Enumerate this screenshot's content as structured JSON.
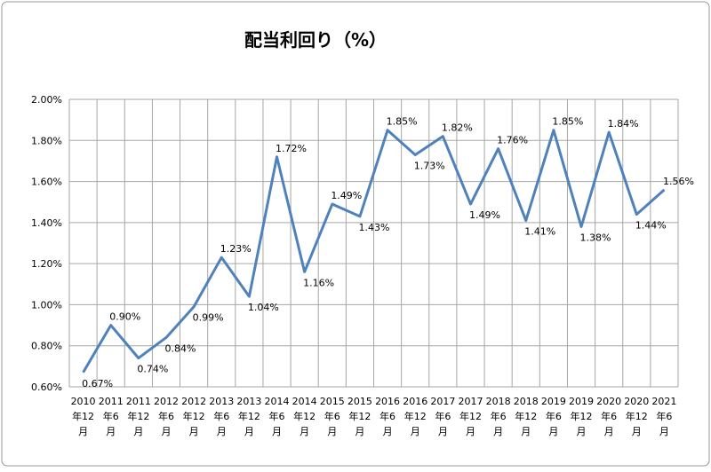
{
  "chart_data": {
    "type": "line",
    "title": "配当利回り（%）",
    "categories": [
      "2010年12月",
      "2011年6月",
      "2011年12月",
      "2012年6月",
      "2012年12月",
      "2013年6月",
      "2013年12月",
      "2014年6月",
      "2014年12月",
      "2015年6月",
      "2015年12月",
      "2016年6月",
      "2016年12月",
      "2017年6月",
      "2017年12月",
      "2018年6月",
      "2018年12月",
      "2019年6月",
      "2019年12月",
      "2020年6月",
      "2020年12月",
      "2021年6月"
    ],
    "series": [
      {
        "color": "#4f81bd",
        "values": [
          0.67,
          0.9,
          0.74,
          0.84,
          0.99,
          1.23,
          1.04,
          1.72,
          1.16,
          1.49,
          1.43,
          1.85,
          1.73,
          1.82,
          1.49,
          1.76,
          1.41,
          1.85,
          1.38,
          1.84,
          1.44,
          1.56
        ],
        "value_labels": [
          "0.67%",
          "0.90%",
          "0.74%",
          "0.84%",
          "0.99%",
          "1.23%",
          "1.04%",
          "1.72%",
          "1.16%",
          "1.49%",
          "1.43%",
          "1.85%",
          "1.73%",
          "1.82%",
          "1.49%",
          "1.76%",
          "1.41%",
          "1.85%",
          "1.38%",
          "1.84%",
          "1.44%",
          "1.56%"
        ]
      }
    ],
    "ylim": [
      0.6,
      2.0
    ],
    "yticks": [
      {
        "value": 0.6,
        "label": "0.60%"
      },
      {
        "value": 0.8,
        "label": "0.80%"
      },
      {
        "value": 1.0,
        "label": "1.00%"
      },
      {
        "value": 1.2,
        "label": "1.20%"
      },
      {
        "value": 1.4,
        "label": "1.40%"
      },
      {
        "value": 1.6,
        "label": "1.60%"
      },
      {
        "value": 1.8,
        "label": "1.80%"
      },
      {
        "value": 2.0,
        "label": "2.00%"
      }
    ],
    "grid": true
  }
}
